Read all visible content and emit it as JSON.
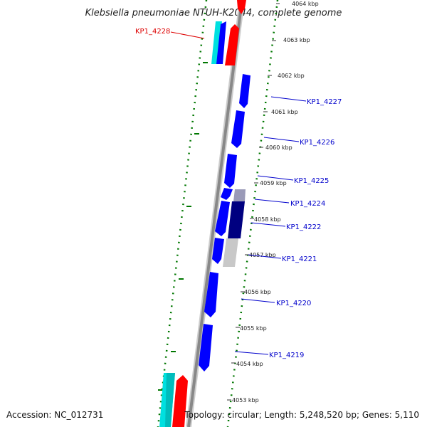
{
  "title": "Klebsiella pneumoniae NTUH-K2044, complete genome",
  "accession": "Accession: NC_012731",
  "topology": "Topology: circular; Length: 5,248,520 bp; Genes: 5,110",
  "colors": {
    "plus_cds": "#ff0000",
    "minus_cds": "#0000ff",
    "cyan": "#00e0e0",
    "dark_navy": "#000080",
    "grey": "#c8c8c8",
    "backbone": "#888888",
    "dotted_ring": "#007700",
    "highlight_label": "#dd0000",
    "gene_label": "#0000cc"
  },
  "ticks": [
    "4064 kbp",
    "4063 kbp",
    "4062 kbp",
    "4061 kbp",
    "4060 kbp",
    "4059 kbp",
    "4058 kbp",
    "4057 kbp",
    "4056 kbp",
    "4055 kbp",
    "4054 kbp",
    "4053 kbp"
  ],
  "gene_labels": [
    {
      "text": "KP1_4228",
      "highlight": true
    },
    {
      "text": "KP1_4227",
      "highlight": false
    },
    {
      "text": "KP1_4226",
      "highlight": false
    },
    {
      "text": "KP1_4225",
      "highlight": false
    },
    {
      "text": "KP1_4224",
      "highlight": false
    },
    {
      "text": "KP1_4222",
      "highlight": false
    },
    {
      "text": "KP1_4221",
      "highlight": false
    },
    {
      "text": "KP1_4220",
      "highlight": false
    },
    {
      "text": "KP1_4219",
      "highlight": false
    }
  ]
}
